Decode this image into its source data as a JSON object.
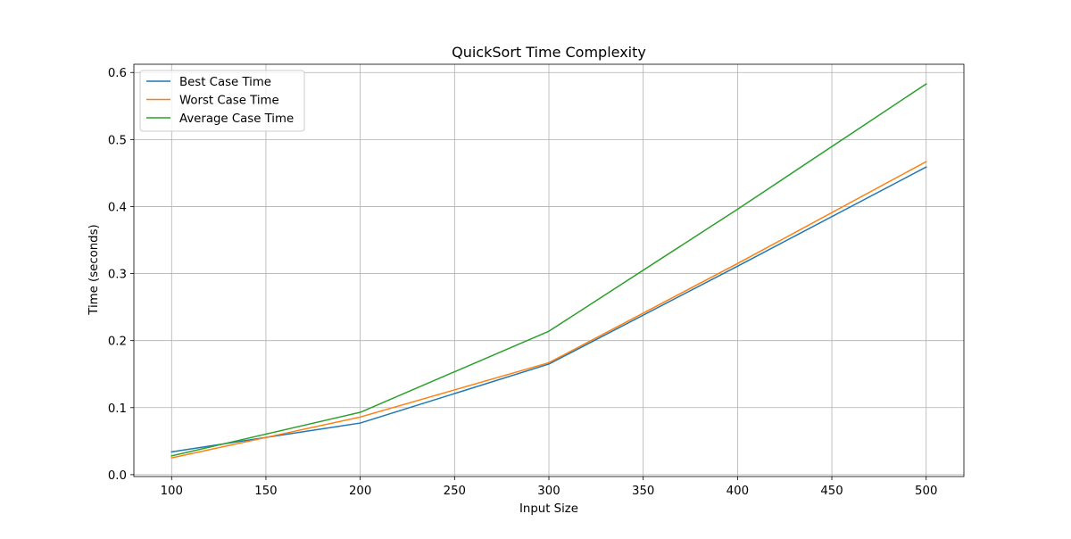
{
  "chart_data": {
    "type": "line",
    "title": "QuickSort Time Complexity",
    "xlabel": "Input Size",
    "ylabel": "Time (seconds)",
    "x": [
      100,
      200,
      300,
      400,
      500
    ],
    "xlim": [
      80,
      520
    ],
    "ylim": [
      -0.0028,
      0.6123
    ],
    "xticks": [
      100,
      150,
      200,
      250,
      300,
      350,
      400,
      450,
      500
    ],
    "yticks": [
      0.0,
      0.1,
      0.2,
      0.3,
      0.4,
      0.5,
      0.6
    ],
    "xtick_labels": [
      "100",
      "150",
      "200",
      "250",
      "300",
      "350",
      "400",
      "450",
      "500"
    ],
    "ytick_labels": [
      "0.0",
      "0.1",
      "0.2",
      "0.3",
      "0.4",
      "0.5",
      "0.6"
    ],
    "grid": true,
    "legend_position": "upper-left",
    "series": [
      {
        "name": "Best Case Time",
        "color": "#1f77b4",
        "values": [
          0.034,
          0.077,
          0.165,
          0.311,
          0.459
        ]
      },
      {
        "name": "Worst Case Time",
        "color": "#ff7f0e",
        "values": [
          0.025,
          0.086,
          0.167,
          0.315,
          0.467
        ]
      },
      {
        "name": "Average Case Time",
        "color": "#2ca02c",
        "values": [
          0.028,
          0.093,
          0.214,
          0.396,
          0.583
        ]
      }
    ]
  }
}
